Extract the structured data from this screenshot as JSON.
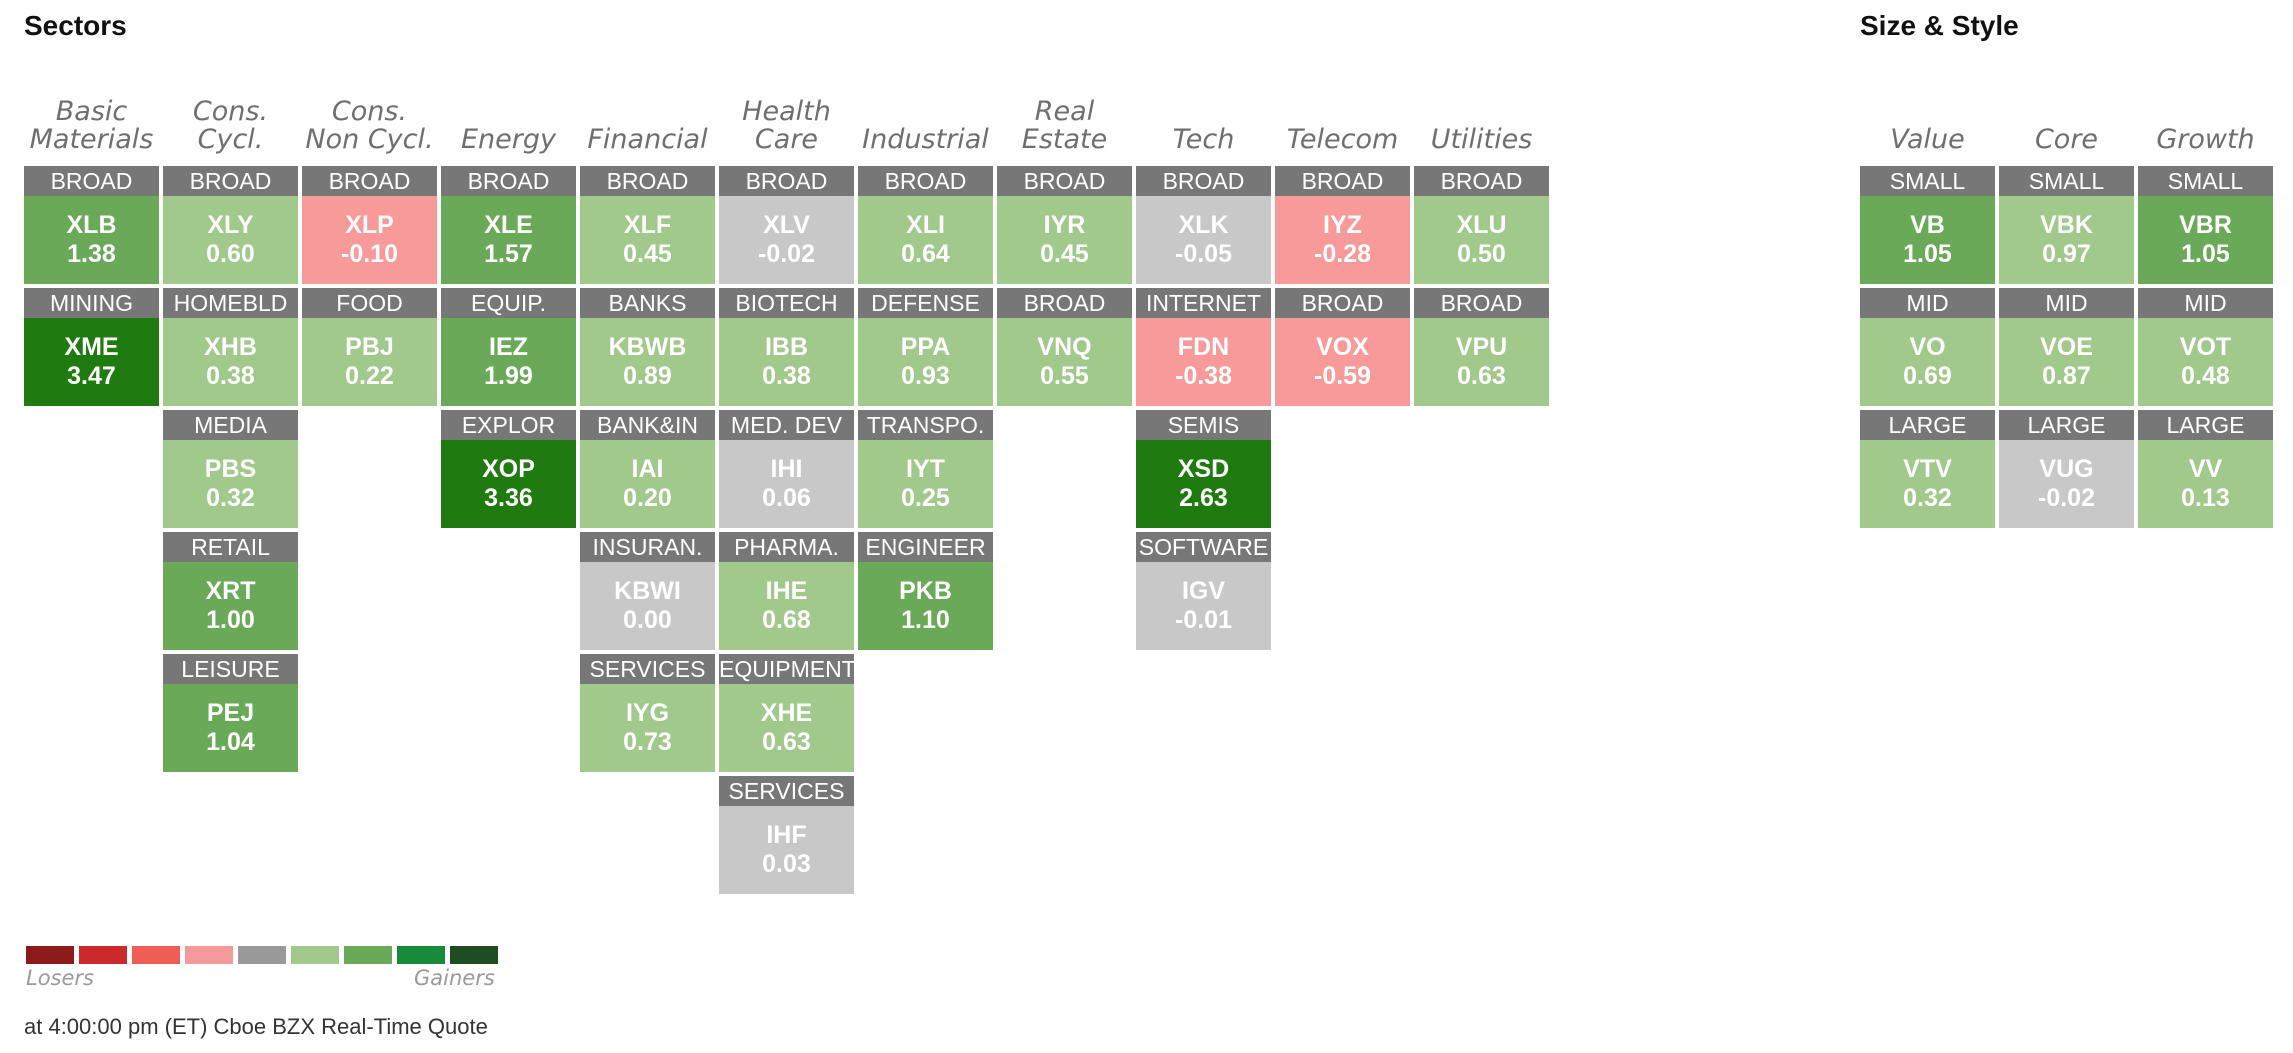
{
  "sectors_title": "Sectors",
  "style_title": "Size & Style",
  "colors": {
    "strong_gain": "#1f7a0f",
    "gain": "#6aa957",
    "light_gain": "#a2c98c",
    "neutral": "#c8c8c8",
    "loss": "#f89a9a",
    "label_bg": "#777777"
  },
  "sectors": [
    {
      "name": "Basic\nMaterials",
      "tiles": [
        {
          "label": "BROAD",
          "ticker": "XLB",
          "change": "1.38",
          "tone": "gain"
        },
        {
          "label": "MINING",
          "ticker": "XME",
          "change": "3.47",
          "tone": "strong_gain"
        }
      ]
    },
    {
      "name": "Cons.\nCycl.",
      "tiles": [
        {
          "label": "BROAD",
          "ticker": "XLY",
          "change": "0.60",
          "tone": "light_gain"
        },
        {
          "label": "HOMEBLD",
          "ticker": "XHB",
          "change": "0.38",
          "tone": "light_gain"
        },
        {
          "label": "MEDIA",
          "ticker": "PBS",
          "change": "0.32",
          "tone": "light_gain"
        },
        {
          "label": "RETAIL",
          "ticker": "XRT",
          "change": "1.00",
          "tone": "gain"
        },
        {
          "label": "LEISURE",
          "ticker": "PEJ",
          "change": "1.04",
          "tone": "gain"
        }
      ]
    },
    {
      "name": "Cons.\nNon Cycl.",
      "tiles": [
        {
          "label": "BROAD",
          "ticker": "XLP",
          "change": "-0.10",
          "tone": "loss"
        },
        {
          "label": "FOOD",
          "ticker": "PBJ",
          "change": "0.22",
          "tone": "light_gain"
        }
      ]
    },
    {
      "name": "Energy",
      "tiles": [
        {
          "label": "BROAD",
          "ticker": "XLE",
          "change": "1.57",
          "tone": "gain"
        },
        {
          "label": "EQUIP.",
          "ticker": "IEZ",
          "change": "1.99",
          "tone": "gain"
        },
        {
          "label": "EXPLOR",
          "ticker": "XOP",
          "change": "3.36",
          "tone": "strong_gain"
        }
      ]
    },
    {
      "name": "Financial",
      "tiles": [
        {
          "label": "BROAD",
          "ticker": "XLF",
          "change": "0.45",
          "tone": "light_gain"
        },
        {
          "label": "BANKS",
          "ticker": "KBWB",
          "change": "0.89",
          "tone": "light_gain"
        },
        {
          "label": "BANK&IN",
          "ticker": "IAI",
          "change": "0.20",
          "tone": "light_gain"
        },
        {
          "label": "INSURAN.",
          "ticker": "KBWI",
          "change": "0.00",
          "tone": "neutral"
        },
        {
          "label": "SERVICES",
          "ticker": "IYG",
          "change": "0.73",
          "tone": "light_gain"
        }
      ]
    },
    {
      "name": "Health\nCare",
      "tiles": [
        {
          "label": "BROAD",
          "ticker": "XLV",
          "change": "-0.02",
          "tone": "neutral"
        },
        {
          "label": "BIOTECH",
          "ticker": "IBB",
          "change": "0.38",
          "tone": "light_gain"
        },
        {
          "label": "MED. DEV",
          "ticker": "IHI",
          "change": "0.06",
          "tone": "neutral"
        },
        {
          "label": "PHARMA.",
          "ticker": "IHE",
          "change": "0.68",
          "tone": "light_gain"
        },
        {
          "label": "EQUIPMENT",
          "ticker": "XHE",
          "change": "0.63",
          "tone": "light_gain"
        },
        {
          "label": "SERVICES",
          "ticker": "IHF",
          "change": "0.03",
          "tone": "neutral"
        }
      ]
    },
    {
      "name": "Industrial",
      "tiles": [
        {
          "label": "BROAD",
          "ticker": "XLI",
          "change": "0.64",
          "tone": "light_gain"
        },
        {
          "label": "DEFENSE",
          "ticker": "PPA",
          "change": "0.93",
          "tone": "light_gain"
        },
        {
          "label": "TRANSPO.",
          "ticker": "IYT",
          "change": "0.25",
          "tone": "light_gain"
        },
        {
          "label": "ENGINEER",
          "ticker": "PKB",
          "change": "1.10",
          "tone": "gain"
        }
      ]
    },
    {
      "name": "Real\nEstate",
      "tiles": [
        {
          "label": "BROAD",
          "ticker": "IYR",
          "change": "0.45",
          "tone": "light_gain"
        },
        {
          "label": "BROAD",
          "ticker": "VNQ",
          "change": "0.55",
          "tone": "light_gain"
        }
      ]
    },
    {
      "name": "Tech",
      "tiles": [
        {
          "label": "BROAD",
          "ticker": "XLK",
          "change": "-0.05",
          "tone": "neutral"
        },
        {
          "label": "INTERNET",
          "ticker": "FDN",
          "change": "-0.38",
          "tone": "loss"
        },
        {
          "label": "SEMIS",
          "ticker": "XSD",
          "change": "2.63",
          "tone": "strong_gain"
        },
        {
          "label": "SOFTWARE",
          "ticker": "IGV",
          "change": "-0.01",
          "tone": "neutral"
        }
      ]
    },
    {
      "name": "Telecom",
      "tiles": [
        {
          "label": "BROAD",
          "ticker": "IYZ",
          "change": "-0.28",
          "tone": "loss"
        },
        {
          "label": "BROAD",
          "ticker": "VOX",
          "change": "-0.59",
          "tone": "loss"
        }
      ]
    },
    {
      "name": "Utilities",
      "tiles": [
        {
          "label": "BROAD",
          "ticker": "XLU",
          "change": "0.50",
          "tone": "light_gain"
        },
        {
          "label": "BROAD",
          "ticker": "VPU",
          "change": "0.63",
          "tone": "light_gain"
        }
      ]
    }
  ],
  "styles": [
    {
      "name": "Value",
      "tiles": [
        {
          "label": "SMALL",
          "ticker": "VB",
          "change": "1.05",
          "tone": "gain"
        },
        {
          "label": "MID",
          "ticker": "VO",
          "change": "0.69",
          "tone": "light_gain"
        },
        {
          "label": "LARGE",
          "ticker": "VTV",
          "change": "0.32",
          "tone": "light_gain"
        }
      ]
    },
    {
      "name": "Core",
      "tiles": [
        {
          "label": "SMALL",
          "ticker": "VBK",
          "change": "0.97",
          "tone": "light_gain"
        },
        {
          "label": "MID",
          "ticker": "VOE",
          "change": "0.87",
          "tone": "light_gain"
        },
        {
          "label": "LARGE",
          "ticker": "VUG",
          "change": "-0.02",
          "tone": "neutral"
        }
      ]
    },
    {
      "name": "Growth",
      "tiles": [
        {
          "label": "SMALL",
          "ticker": "VBR",
          "change": "1.05",
          "tone": "gain"
        },
        {
          "label": "MID",
          "ticker": "VOT",
          "change": "0.48",
          "tone": "light_gain"
        },
        {
          "label": "LARGE",
          "ticker": "VV",
          "change": "0.13",
          "tone": "light_gain"
        }
      ]
    }
  ],
  "legend": {
    "swatches": [
      "#8b1a1a",
      "#cc2a2a",
      "#ee5e55",
      "#f59a9a",
      "#999999",
      "#a2c98c",
      "#6aa957",
      "#178a3c",
      "#1f4d22"
    ],
    "losers_label": "Losers",
    "gainers_label": "Gainers"
  },
  "footer": "at 4:00:00 pm (ET) Cboe BZX Real-Time Quote"
}
